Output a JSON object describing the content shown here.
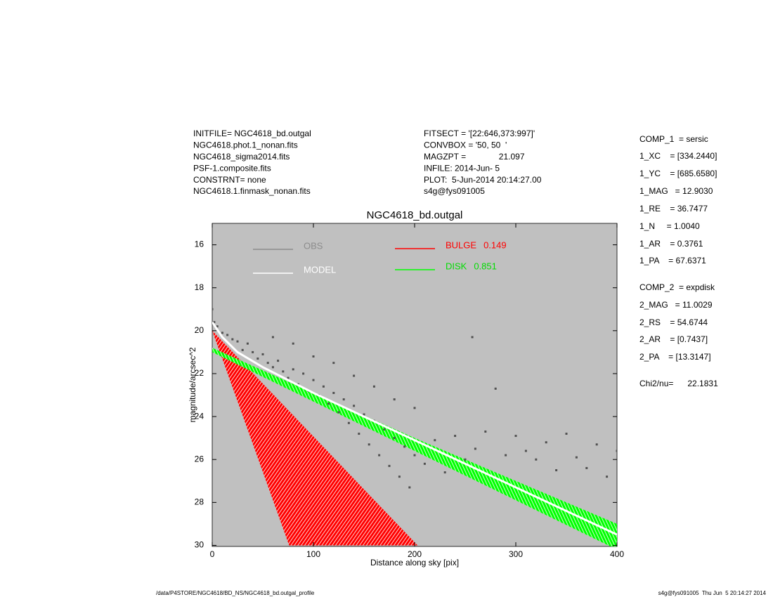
{
  "info_left": [
    "INITFILE= NGC4618_bd.outgal",
    "NGC4618.phot.1_nonan.fits",
    "NGC4618_sigma2014.fits",
    "PSF-1.composite.fits",
    "CONSTRNT= none",
    "NGC4618.1.finmask_nonan.fits"
  ],
  "info_mid": [
    "FITSECT = '[22:646,373:997]'",
    "CONVBOX = '50, 50  '",
    "MAGZPT =              21.097",
    "INFILE: 2014-Jun- 5",
    "PLOT:  5-Jun-2014 20:14:27.00",
    "s4g@fys091005"
  ],
  "params": [
    "COMP_1  = sersic",
    "1_XC    = [334.2440]",
    "1_YC    = [685.6580]",
    "1_MAG   = 12.9030",
    "1_RE    = 36.7477",
    "1_N     = 1.0040",
    "1_AR    = 0.3761",
    "1_PA    = 67.6371",
    "COMP_2  = expdisk",
    "2_MAG   = 11.0029",
    "2_RS    = 54.6744",
    "2_AR    = [0.7437]",
    "2_PA    = [13.3147]",
    "Chi2/nu=      22.1831"
  ],
  "footer_left": "/data/P4STORE/NGC4618/BD_NS/NGC4618_bd.outgal_profile",
  "footer_right": "s4g@fys091005  Thu Jun  5 20:14:27 2014",
  "chart_data": {
    "type": "scatter",
    "title": "NGC4618_bd.outgal",
    "x_label": "Distance along sky [pix]",
    "y_label": "magnitude/arcsec^2",
    "xlim": [
      0,
      400
    ],
    "ylim": [
      15,
      30.05
    ],
    "y_inverted": true,
    "xticks": [
      0,
      100,
      200,
      300,
      400
    ],
    "yticks": [
      16,
      18,
      20,
      22,
      24,
      26,
      28,
      30
    ],
    "background": "#c0c0c0",
    "series": [
      {
        "name": "OBS",
        "color": "#505050",
        "legend_color": "#8c8c8c",
        "kind": "points",
        "x": [
          0,
          2,
          5,
          10,
          15,
          20,
          25,
          30,
          35,
          40,
          45,
          50,
          55,
          60,
          65,
          70,
          75,
          80,
          85,
          90,
          95,
          100,
          105,
          110,
          115,
          120,
          125,
          130,
          135,
          140,
          145,
          150,
          155,
          160,
          165,
          170,
          175,
          180,
          185,
          190,
          195,
          200,
          210,
          220,
          230,
          240,
          250,
          257,
          260,
          270,
          280,
          290,
          300,
          310,
          320,
          330,
          340,
          350,
          360,
          370,
          380,
          390,
          400,
          60,
          80,
          100,
          120,
          140,
          160,
          180,
          200
        ],
        "values": [
          19.0,
          19.6,
          19.8,
          20.1,
          20.2,
          20.4,
          20.5,
          20.9,
          20.6,
          21.0,
          21.3,
          21.1,
          21.5,
          21.7,
          21.4,
          21.9,
          22.2,
          21.8,
          22.5,
          22.0,
          22.8,
          22.3,
          23.0,
          22.6,
          23.4,
          22.9,
          23.8,
          23.2,
          24.3,
          23.5,
          24.8,
          23.9,
          25.3,
          24.2,
          25.8,
          24.6,
          26.3,
          25.0,
          26.8,
          25.4,
          27.3,
          25.8,
          26.2,
          25.1,
          26.6,
          24.9,
          26.0,
          20.3,
          25.5,
          24.7,
          22.7,
          25.8,
          24.9,
          25.6,
          26.0,
          25.2,
          26.5,
          24.8,
          25.9,
          26.4,
          25.3,
          26.8,
          25.6,
          20.3,
          20.6,
          21.2,
          21.5,
          22.1,
          22.6,
          23.2,
          23.6
        ]
      },
      {
        "name": "MODEL",
        "color": "#ffffff",
        "kind": "line",
        "x": [
          0,
          10,
          25,
          50,
          100,
          150,
          200,
          250,
          300,
          350,
          400
        ],
        "values": [
          19.6,
          20.3,
          21.0,
          21.7,
          22.9,
          24.0,
          25.1,
          26.2,
          27.3,
          28.4,
          29.5
        ]
      },
      {
        "name": "BULGE",
        "fraction": 0.149,
        "color": "#ff0000",
        "kind": "band",
        "x": [
          0,
          203
        ],
        "values": [
          20,
          30
        ],
        "lower_x": [
          0,
          76
        ],
        "lower": [
          20,
          30
        ]
      },
      {
        "name": "DISK",
        "fraction": 0.851,
        "color": "#00ff00",
        "text_color": "#00dd00",
        "kind": "band",
        "x": [
          0,
          100,
          200,
          300,
          400
        ],
        "values": [
          20.8,
          22.9,
          25.0,
          27.0,
          29.0
        ],
        "lower_x": [
          0,
          100,
          200,
          300,
          400
        ],
        "lower": [
          21.0,
          23.3,
          25.6,
          27.9,
          30.2
        ]
      }
    ]
  }
}
